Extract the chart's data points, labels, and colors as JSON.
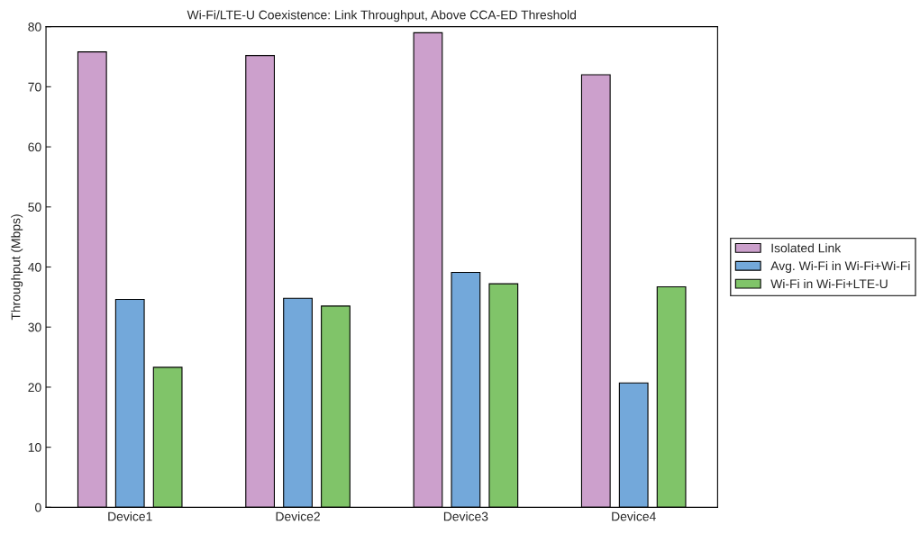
{
  "chart_data": {
    "type": "bar",
    "title": "Wi-Fi/LTE-U Coexistence: Link Throughput, Above CCA-ED Threshold",
    "ylabel": "Throughput (Mbps)",
    "categories": [
      "Device1",
      "Device2",
      "Device3",
      "Device4"
    ],
    "series": [
      {
        "name": "Isolated Link",
        "color": "#cca0cc",
        "values": [
          75.8,
          75.2,
          79.0,
          72
        ]
      },
      {
        "name": "Avg. Wi-Fi in Wi-Fi+Wi-Fi",
        "color": "#73a8da",
        "values": [
          34.6,
          34.8,
          39.1,
          20.7
        ]
      },
      {
        "name": "Wi-Fi in Wi-Fi+LTE-U",
        "color": "#80c469",
        "values": [
          23.3,
          33.5,
          37.2,
          36.7
        ]
      }
    ],
    "ylim": [
      0,
      80
    ],
    "yticks": [
      0,
      10,
      20,
      30,
      40,
      50,
      60,
      70,
      80
    ],
    "grid": false,
    "legend": "right"
  }
}
